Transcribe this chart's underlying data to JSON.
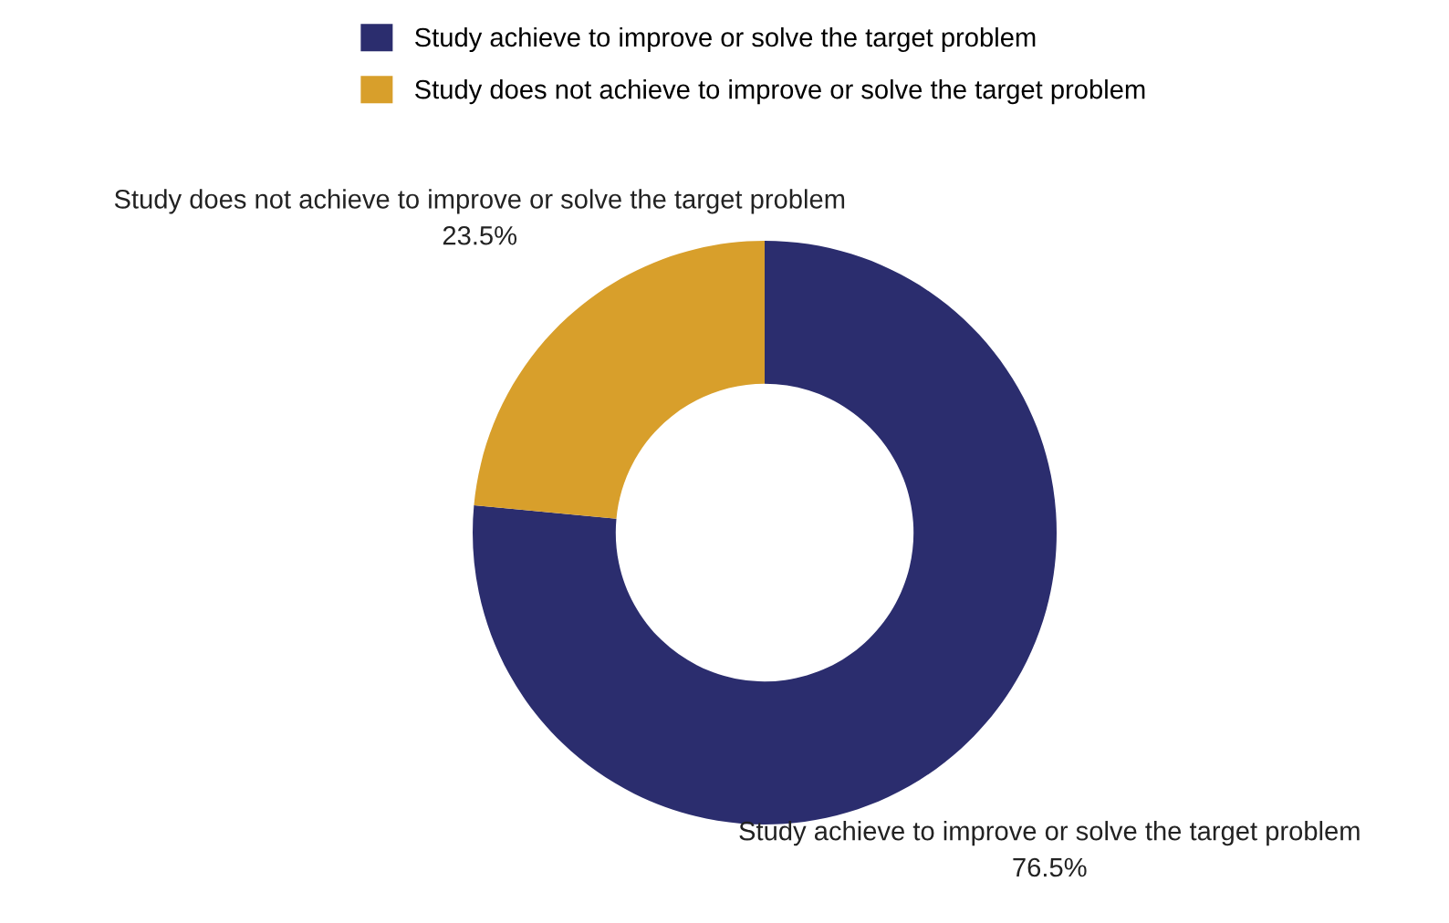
{
  "chart_data": {
    "type": "donut",
    "categories": [
      "Study achieve to improve or solve the target problem",
      "Study does not achieve to improve or solve the target problem"
    ],
    "values": [
      76.5,
      23.5
    ],
    "colors": [
      "#2b2d6e",
      "#d89f2b"
    ],
    "value_labels": [
      "76.5%",
      "23.5%"
    ],
    "legend": "top"
  }
}
